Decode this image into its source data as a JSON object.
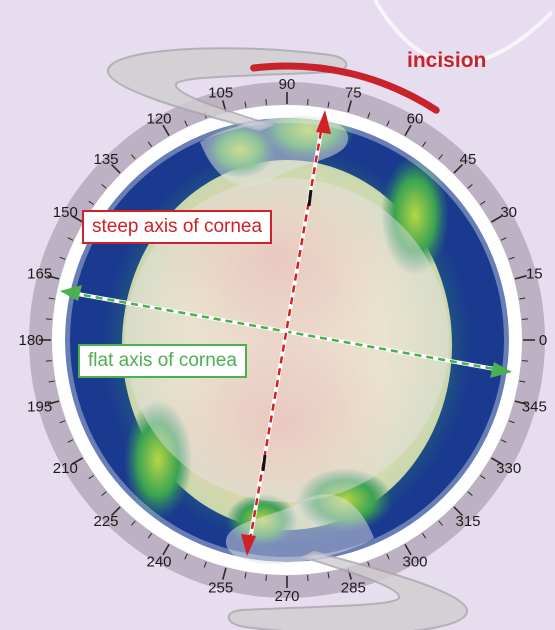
{
  "labels": {
    "incision": "incision",
    "steep_axis": "steep axis of cornea",
    "flat_axis": "flat axis of cornea"
  },
  "degree_scale": [
    "0",
    "15",
    "30",
    "45",
    "60",
    "75",
    "90",
    "105",
    "120",
    "135",
    "150",
    "165",
    "180",
    "195",
    "210",
    "225",
    "240",
    "255",
    "270",
    "285",
    "300",
    "315",
    "330",
    "345"
  ],
  "colors": {
    "background": "#e6ddee",
    "incision": "#c8232c",
    "steep_axis": "#d22027",
    "flat_axis": "#4caf50",
    "topography_flat": "#1a3a8f",
    "topography_mid": "#3aa353",
    "topography_steep": "#e6a79a"
  }
}
